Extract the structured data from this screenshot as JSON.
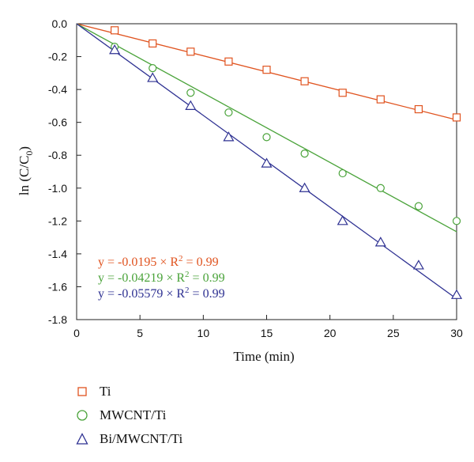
{
  "chart_data": {
    "type": "scatter",
    "xlabel": "Time (min)",
    "ylabel_main": "ln (C/C",
    "ylabel_sub": "0",
    "ylabel_end": ")",
    "xlim": [
      0,
      30
    ],
    "ylim": [
      -1.8,
      0.0
    ],
    "xticks": [
      0,
      5,
      10,
      15,
      20,
      25,
      30
    ],
    "yticks": [
      0.0,
      -0.2,
      -0.4,
      -0.6,
      -0.8,
      -1.0,
      -1.2,
      -1.4,
      -1.6,
      -1.8
    ],
    "ytick_labels": [
      "0.0",
      "-0.2",
      "-0.4",
      "-0.6",
      "-0.8",
      "-1.0",
      "-1.2",
      "-1.4",
      "-1.6",
      "-1.8"
    ],
    "grid": false,
    "x": [
      3,
      6,
      9,
      12,
      15,
      18,
      21,
      24,
      27,
      30
    ],
    "series": [
      {
        "name": "Ti",
        "marker": "square",
        "color": "#e0531f",
        "values": [
          -0.04,
          -0.12,
          -0.17,
          -0.23,
          -0.28,
          -0.35,
          -0.42,
          -0.46,
          -0.52,
          -0.57
        ],
        "fit_slope": -0.0195,
        "equation_prefix": "y = -0.0195 × R",
        "equation_exp": "2",
        "equation_suffix": " = 0.99"
      },
      {
        "name": "MWCNT/Ti",
        "marker": "circle",
        "color": "#4aa33a",
        "values": [
          -0.14,
          -0.27,
          -0.42,
          -0.54,
          -0.69,
          -0.79,
          -0.91,
          -1.0,
          -1.11,
          -1.2
        ],
        "fit_slope": -0.04219,
        "equation_prefix": "y = -0.04219 × R",
        "equation_exp": "2",
        "equation_suffix": " = 0.99"
      },
      {
        "name": "Bi/MWCNT/Ti",
        "marker": "triangle",
        "color": "#2e3192",
        "values": [
          -0.16,
          -0.33,
          -0.5,
          -0.69,
          -0.85,
          -1.0,
          -1.2,
          -1.33,
          -1.47,
          -1.65
        ],
        "fit_slope": -0.05579,
        "equation_prefix": "y = -0.05579 × R",
        "equation_exp": "2",
        "equation_suffix": " = 0.99"
      }
    ]
  }
}
